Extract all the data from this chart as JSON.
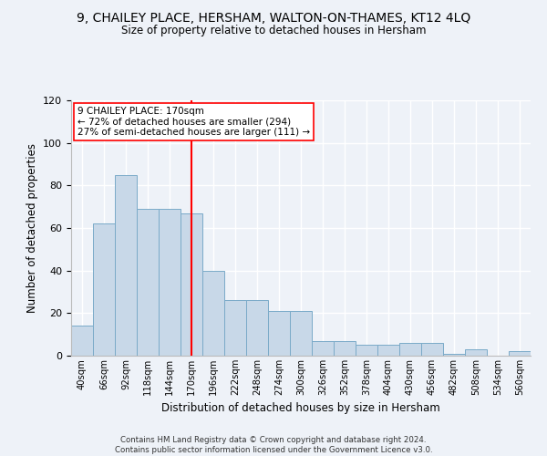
{
  "title1": "9, CHAILEY PLACE, HERSHAM, WALTON-ON-THAMES, KT12 4LQ",
  "title2": "Size of property relative to detached houses in Hersham",
  "xlabel": "Distribution of detached houses by size in Hersham",
  "ylabel": "Number of detached properties",
  "bar_labels": [
    "40sqm",
    "66sqm",
    "92sqm",
    "118sqm",
    "144sqm",
    "170sqm",
    "196sqm",
    "222sqm",
    "248sqm",
    "274sqm",
    "300sqm",
    "326sqm",
    "352sqm",
    "378sqm",
    "404sqm",
    "430sqm",
    "456sqm",
    "482sqm",
    "508sqm",
    "534sqm",
    "560sqm"
  ],
  "bar_values": [
    14,
    62,
    85,
    69,
    69,
    67,
    40,
    26,
    26,
    21,
    21,
    7,
    7,
    5,
    5,
    6,
    6,
    1,
    3,
    0,
    2
  ],
  "bar_color": "#c8d8e8",
  "bar_edge_color": "#7aaac8",
  "vline_x_idx": 5,
  "vline_color": "red",
  "annotation_title": "9 CHAILEY PLACE: 170sqm",
  "annotation_line1": "← 72% of detached houses are smaller (294)",
  "annotation_line2": "27% of semi-detached houses are larger (111) →",
  "annotation_box_color": "white",
  "annotation_box_edge": "red",
  "ylim": [
    0,
    120
  ],
  "yticks": [
    0,
    20,
    40,
    60,
    80,
    100,
    120
  ],
  "bg_color": "#eef2f8",
  "grid_color": "white",
  "footnote_line1": "Contains HM Land Registry data © Crown copyright and database right 2024.",
  "footnote_line2": "Contains public sector information licensed under the Government Licence v3.0."
}
